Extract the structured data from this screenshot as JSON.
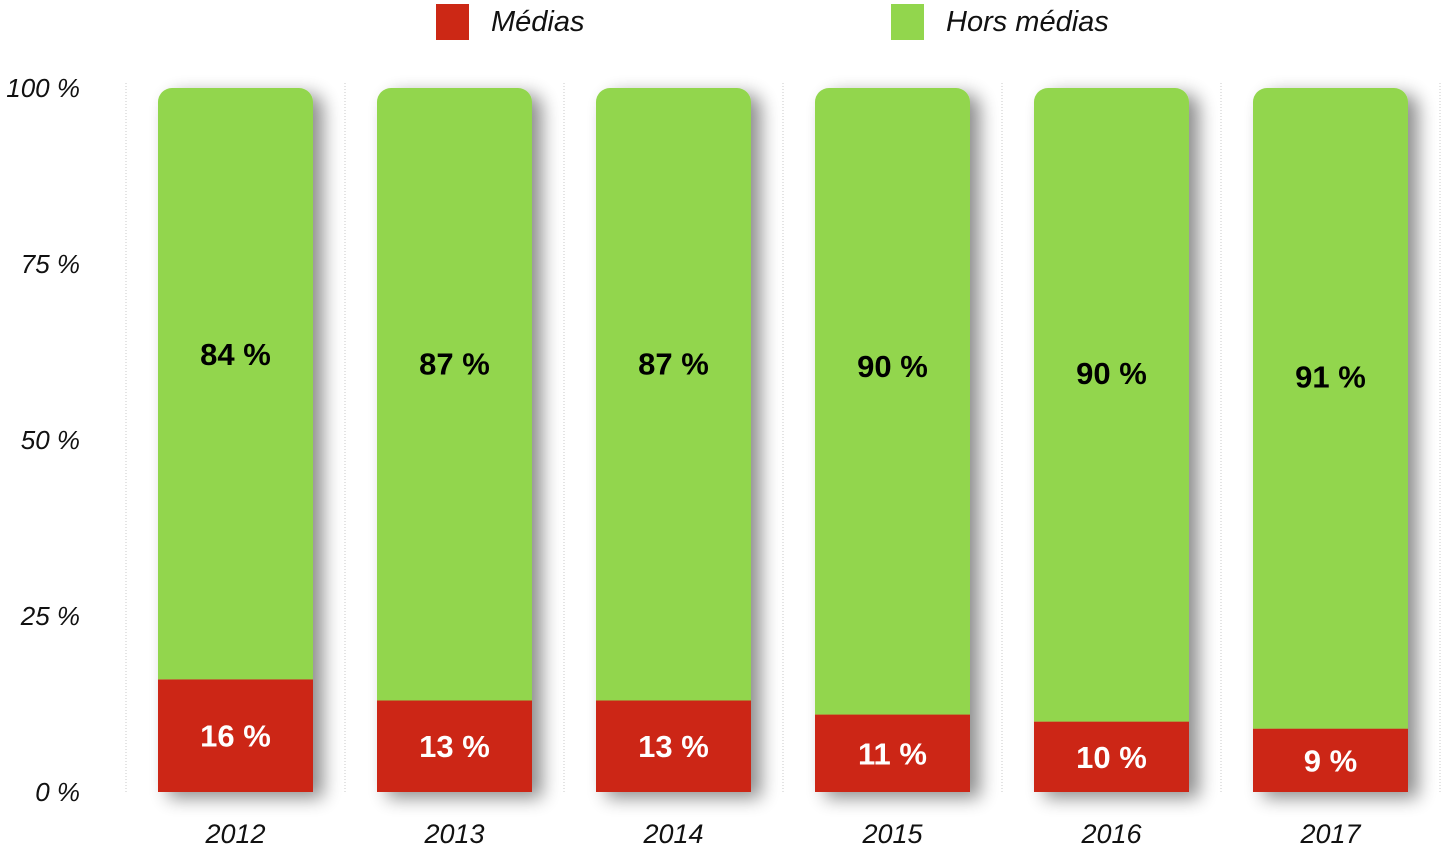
{
  "chart_data": {
    "type": "bar",
    "stacked": true,
    "title": "",
    "xlabel": "",
    "ylabel": "",
    "categories": [
      "2012",
      "2013",
      "2014",
      "2015",
      "2016",
      "2017"
    ],
    "series": [
      {
        "name": "Médias",
        "color": "#cc2815",
        "values": [
          16,
          13,
          13,
          11,
          10,
          9
        ],
        "labels": [
          "16 %",
          "13 %",
          "13 %",
          "11 %",
          "10 %",
          "9 %"
        ]
      },
      {
        "name": "Hors médias",
        "color": "#92d64d",
        "values": [
          84,
          87,
          87,
          90,
          90,
          91
        ],
        "labels": [
          "84 %",
          "87 %",
          "87 %",
          "90 %",
          "90 %",
          "91 %"
        ]
      }
    ],
    "ylim": [
      0,
      100
    ],
    "yticks": [
      0,
      25,
      50,
      75,
      100
    ],
    "ytick_labels": [
      "0 %",
      "25 %",
      "50 %",
      "75 %",
      "100 %"
    ],
    "legend_position": "top-center",
    "grid": "vertical dotted separators"
  }
}
